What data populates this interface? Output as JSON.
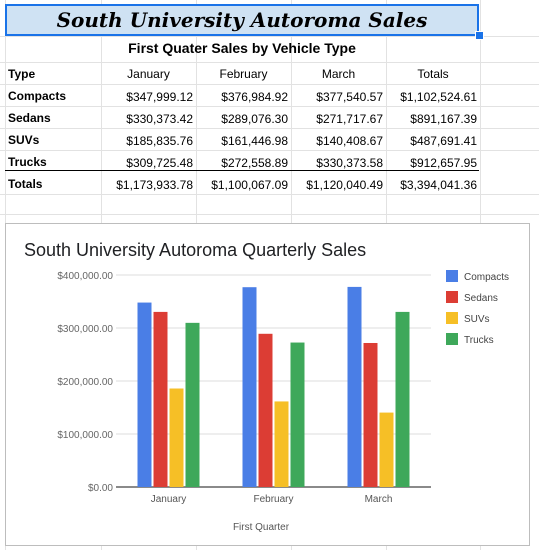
{
  "sheet": {
    "title": "South University Autoroma Sales",
    "subtitle": "First Quater Sales by Vehicle Type",
    "headers": [
      "Type",
      "January",
      "February",
      "March",
      "Totals"
    ],
    "rows": [
      {
        "type": "Compacts",
        "january": "$347,999.12",
        "february": "$376,984.92",
        "march": "$377,540.57",
        "total": "$1,102,524.61"
      },
      {
        "type": "Sedans",
        "january": "$330,373.42",
        "february": "$289,076.30",
        "march": "$271,717.67",
        "total": "$891,167.39"
      },
      {
        "type": "SUVs",
        "january": "$185,835.76",
        "february": "$161,446.98",
        "march": "$140,408.67",
        "total": "$487,691.41"
      },
      {
        "type": "Trucks",
        "january": "$309,725.48",
        "february": "$272,558.89",
        "march": "$330,373.58",
        "total": "$912,657.95"
      }
    ],
    "totals": {
      "label": "Totals",
      "january": "$1,173,933.78",
      "february": "$1,100,067.09",
      "march": "$1,120,040.49",
      "total": "$3,394,041.36"
    }
  },
  "chart_data": {
    "type": "bar",
    "title": "South University Autoroma Quarterly Sales",
    "xlabel": "First Quarter",
    "ylabel": "",
    "categories": [
      "January",
      "February",
      "March"
    ],
    "series": [
      {
        "name": "Compacts",
        "color": "#4a7ee6",
        "values": [
          347999.12,
          376984.92,
          377540.57
        ]
      },
      {
        "name": "Sedans",
        "color": "#dc3d34",
        "values": [
          330373.42,
          289076.3,
          271717.67
        ]
      },
      {
        "name": "SUVs",
        "color": "#f6bf26",
        "values": [
          185835.76,
          161446.98,
          140408.67
        ]
      },
      {
        "name": "Trucks",
        "color": "#3ea85a",
        "values": [
          309725.48,
          272558.89,
          330373.58
        ]
      }
    ],
    "ylim": [
      0,
      400000
    ],
    "yticks": [
      0,
      100000,
      200000,
      300000,
      400000
    ],
    "ytick_labels": [
      "$0.00",
      "$100,000.00",
      "$200,000.00",
      "$300,000.00",
      "$400,000.00"
    ],
    "grid": true,
    "legend": "right"
  }
}
